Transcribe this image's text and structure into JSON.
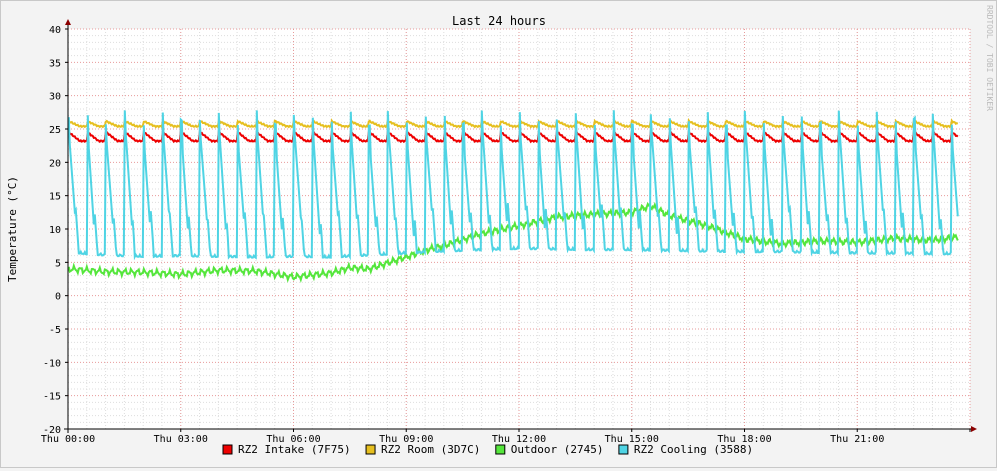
{
  "chart_data": {
    "type": "line",
    "title": "Last 24 hours",
    "ylabel": "Temperature (°C)",
    "watermark": "RRDTOOL / TOBI OETIKER",
    "ylim": [
      -20,
      40
    ],
    "xlim_hours": [
      0,
      24
    ],
    "yticks": [
      "40",
      "35",
      "30",
      "25",
      "20",
      "15",
      "10",
      "5",
      "0",
      "-5",
      "-10",
      "-15",
      "-20"
    ],
    "xticks": [
      "Thu 00:00",
      "Thu 03:00",
      "Thu 06:00",
      "Thu 09:00",
      "Thu 12:00",
      "Thu 15:00",
      "Thu 18:00",
      "Thu 21:00"
    ],
    "grid": true,
    "legend_position": "bottom",
    "series": [
      {
        "name": "RZ2 Intake (7F75)",
        "color": "#ee0000",
        "pattern": "periodic",
        "period_h": 0.5,
        "low": 23.2,
        "high": 24.6,
        "x": [
          0,
          24
        ]
      },
      {
        "name": "RZ2 Room (3D7C)",
        "color": "#e6bf1f",
        "pattern": "periodic",
        "period_h": 0.5,
        "low": 25.4,
        "high": 26.2,
        "x": [
          0,
          24
        ]
      },
      {
        "name": "Outdoor (2745)",
        "color": "#55e63c",
        "pattern": "line",
        "x": [
          0,
          1,
          2,
          3,
          4,
          5,
          6,
          7,
          7.5,
          8,
          9,
          9.5,
          10,
          11,
          12,
          13,
          14,
          15,
          15.5,
          16,
          17,
          18,
          19,
          20,
          21,
          22,
          23,
          24
        ],
        "y": [
          4,
          3.6,
          3.5,
          3.2,
          3.8,
          3.7,
          2.8,
          3.4,
          4.2,
          4.0,
          5.8,
          6.8,
          7.5,
          9.3,
          10.5,
          11.8,
          12.2,
          12.5,
          13.5,
          12.0,
          10.5,
          8.5,
          7.8,
          8.2,
          8.0,
          8.6,
          8.3,
          9.0
        ]
      },
      {
        "name": "RZ2 Cooling (3588)",
        "color": "#4fd4e4",
        "pattern": "periodic",
        "period_h": 0.5,
        "x": [
          0,
          0.5,
          1,
          2,
          3,
          4,
          5,
          6,
          7,
          8,
          9,
          10,
          11,
          12,
          13,
          14,
          15,
          16,
          17,
          18,
          19,
          20,
          21,
          22,
          23,
          24
        ],
        "y": [
          6.5,
          6.2,
          6.0,
          5.8,
          5.9,
          5.8,
          5.7,
          5.8,
          5.7,
          6.0,
          6.3,
          6.6,
          6.8,
          7.0,
          6.9,
          6.8,
          6.8,
          6.7,
          6.6,
          6.5,
          6.5,
          6.4,
          6.3,
          6.3,
          6.2,
          6.2
        ],
        "peak_low": 25.5,
        "peak_high": 27.8
      }
    ]
  }
}
